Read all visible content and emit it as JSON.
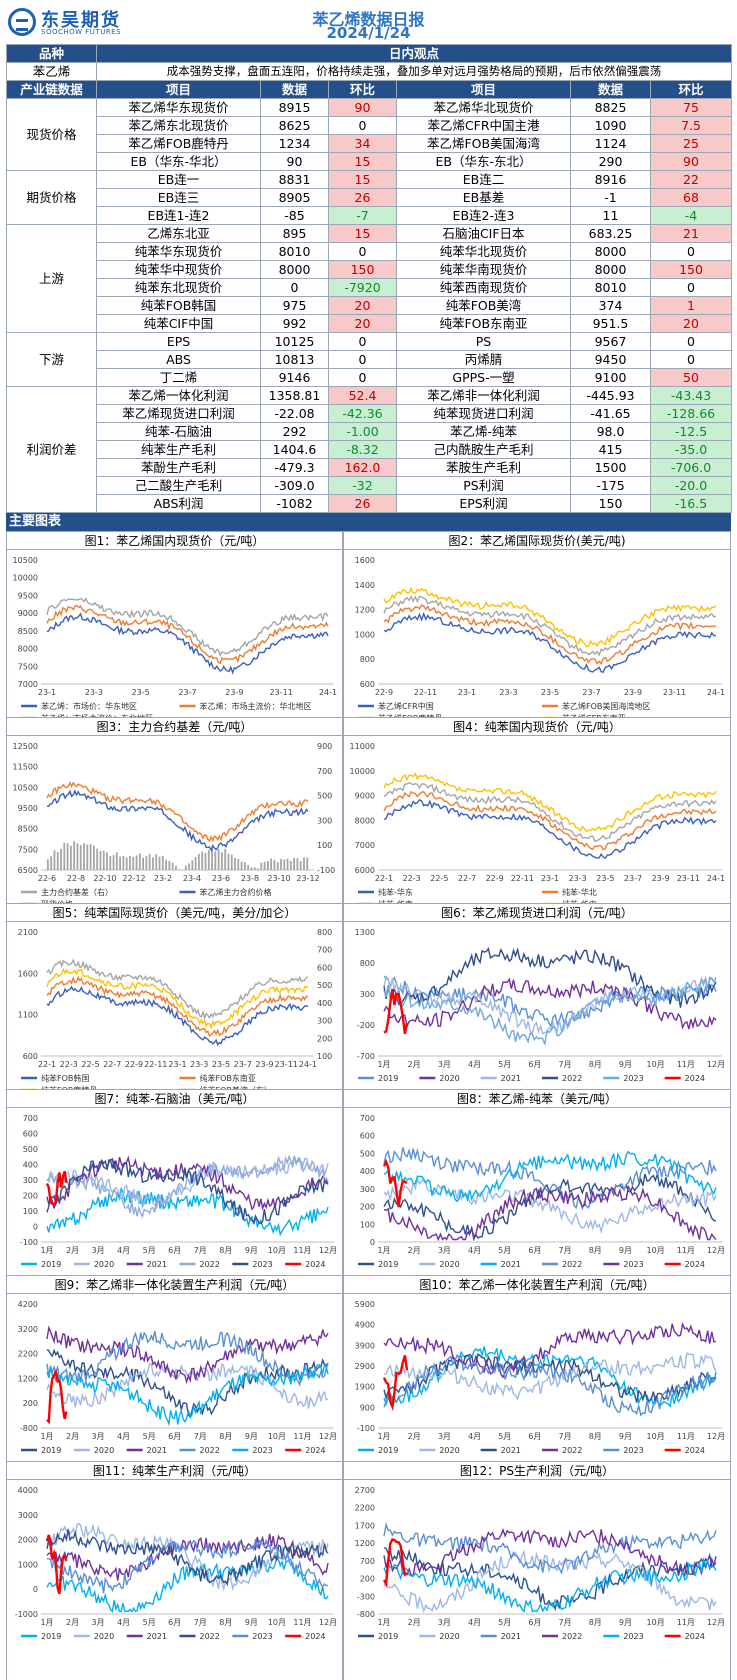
{
  "header": {
    "logo_cn": "东吴期货",
    "logo_en": "SOOCHOW FUTURES",
    "title": "苯乙烯数据日报",
    "date": "2024/1/24"
  },
  "view_header": {
    "variety_label": "品种",
    "view_label": "日内观点"
  },
  "view": {
    "variety": "苯乙烯",
    "text": "成本强势支撑，盘面五连阳，价格持续走强，叠加多单对远月强势格局的预期，后市依然偏强震荡"
  },
  "columns": {
    "chain": "产业链数据",
    "item": "项目",
    "data": "数据",
    "chg": "环比"
  },
  "sections": [
    {
      "name": "现货价格",
      "rows": [
        [
          "苯乙烯华东现货价",
          "8915",
          "90",
          "pos",
          "苯乙烯华北现货价",
          "8825",
          "75",
          "pos"
        ],
        [
          "苯乙烯东北现货价",
          "8625",
          "0",
          "",
          "苯乙烯CFR中国主港",
          "1090",
          "7.5",
          "pos"
        ],
        [
          "苯乙烯FOB鹿特丹",
          "1234",
          "34",
          "pos",
          "苯乙烯FOB美国海湾",
          "1124",
          "25",
          "pos"
        ],
        [
          "EB（华东-华北）",
          "90",
          "15",
          "pos",
          "EB（华东-东北）",
          "290",
          "90",
          "pos"
        ]
      ]
    },
    {
      "name": "期货价格",
      "rows": [
        [
          "EB连一",
          "8831",
          "15",
          "pos",
          "EB连二",
          "8916",
          "22",
          "pos"
        ],
        [
          "EB连三",
          "8905",
          "26",
          "pos",
          "EB基差",
          "-1",
          "68",
          "pos"
        ],
        [
          "EB连1-连2",
          "-85",
          "-7",
          "neg",
          "EB连2-连3",
          "11",
          "-4",
          "neg"
        ]
      ]
    },
    {
      "name": "上游",
      "rows": [
        [
          "乙烯东北亚",
          "895",
          "15",
          "pos",
          "石脑油CIF日本",
          "683.25",
          "21",
          "pos"
        ],
        [
          "纯苯华东现货价",
          "8010",
          "0",
          "",
          "纯苯华北现货价",
          "8000",
          "0",
          ""
        ],
        [
          "纯苯华中现货价",
          "8000",
          "150",
          "pos",
          "纯苯华南现货价",
          "8000",
          "150",
          "pos"
        ],
        [
          "纯苯东北现货价",
          "0",
          "-7920",
          "neg",
          "纯苯西南现货价",
          "8010",
          "0",
          ""
        ],
        [
          "纯苯FOB韩国",
          "975",
          "20",
          "pos",
          "纯苯FOB美湾",
          "374",
          "1",
          "pos"
        ],
        [
          "纯苯CIF中国",
          "992",
          "20",
          "pos",
          "纯苯FOB东南亚",
          "951.5",
          "20",
          "pos"
        ]
      ]
    },
    {
      "name": "下游",
      "rows": [
        [
          "EPS",
          "10125",
          "0",
          "",
          "PS",
          "9567",
          "0",
          ""
        ],
        [
          "ABS",
          "10813",
          "0",
          "",
          "丙烯腈",
          "9450",
          "0",
          ""
        ],
        [
          "丁二烯",
          "9146",
          "0",
          "",
          "GPPS-一塑",
          "9100",
          "50",
          "pos"
        ]
      ]
    },
    {
      "name": "利润价差",
      "rows": [
        [
          "苯乙烯一体化利润",
          "1358.81",
          "52.4",
          "pos",
          "苯乙烯非一体化利润",
          "-445.93",
          "-43.43",
          "neg"
        ],
        [
          "苯乙烯现货进口利润",
          "-22.08",
          "-42.36",
          "neg",
          "纯苯现货进口利润",
          "-41.65",
          "-128.66",
          "neg"
        ],
        [
          "纯苯-石脑油",
          "292",
          "-1.00",
          "neg",
          "苯乙烯-纯苯",
          "98.0",
          "-12.5",
          "neg"
        ],
        [
          "纯苯生产毛利",
          "1404.6",
          "-8.32",
          "neg",
          "己内酰胺生产毛利",
          "415",
          "-35.0",
          "neg"
        ],
        [
          "苯酚生产毛利",
          "-479.3",
          "162.0",
          "pos",
          "苯胺生产毛利",
          "1500",
          "-706.0",
          "neg"
        ],
        [
          "己二酸生产毛利",
          "-309.0",
          "-32",
          "neg",
          "PS利润",
          "-175",
          "-20.0",
          "neg"
        ],
        [
          "ABS利润",
          "-1082",
          "26",
          "pos",
          "EPS利润",
          "150",
          "-16.5",
          "neg"
        ]
      ]
    }
  ],
  "charts_header": "主要图表",
  "chart_data": [
    {
      "type": "line",
      "title": "图1：苯乙烯国内现货价（元/吨）",
      "ylim": [
        7000,
        10500
      ],
      "yticks": [
        "10500",
        "10000",
        "9500",
        "9000",
        "8500",
        "8000",
        "7500",
        "7000"
      ],
      "xticks": [
        "23-1",
        "23-3",
        "23-5",
        "23-7",
        "23-9",
        "23-11",
        "24-1"
      ],
      "series": [
        {
          "name": "苯乙烯：市场价：华东地区",
          "color": "#3b5fc0"
        },
        {
          "name": "苯乙烯：市场主流价：华北地区",
          "color": "#ed7d31"
        },
        {
          "name": "苯乙烯：市场主流价：东北地区",
          "color": "#a5a5a5"
        }
      ]
    },
    {
      "type": "line",
      "title": "图2：苯乙烯国际现货价(美元/吨)",
      "ylim": [
        600,
        1600
      ],
      "yticks": [
        "1600",
        "1400",
        "1200",
        "1000",
        "800",
        "600"
      ],
      "xticks": [
        "22-9",
        "22-11",
        "23-1",
        "23-3",
        "23-5",
        "23-7",
        "23-9",
        "23-11",
        "24-1"
      ],
      "series": [
        {
          "name": "苯乙烯CFR中国",
          "color": "#3b5fc0"
        },
        {
          "name": "苯乙烯FOB美国海湾地区",
          "color": "#ed7d31"
        },
        {
          "name": "苯乙烯FOB鹿特丹",
          "color": "#a5a5a5"
        },
        {
          "name": "苯乙烯CFR东南亚",
          "color": "#ffc000"
        }
      ]
    },
    {
      "type": "line",
      "title": "图3：主力合约基差（元/吨）",
      "ylim": [
        6500,
        12500
      ],
      "yticks": [
        "12500",
        "11500",
        "10500",
        "9500",
        "8500",
        "7500",
        "6500"
      ],
      "y2ticks": [
        "900",
        "700",
        "500",
        "300",
        "100",
        "-100"
      ],
      "xticks": [
        "22-6",
        "22-8",
        "22-10",
        "22-12",
        "23-2",
        "23-4",
        "23-6",
        "23-8",
        "23-10",
        "23-12"
      ],
      "series": [
        {
          "name": "主力合约基差（右）",
          "color": "#a5a5a5"
        },
        {
          "name": "苯乙烯主力合约价格",
          "color": "#3b5fc0"
        },
        {
          "name": "现货价格",
          "color": "#ed7d31"
        }
      ]
    },
    {
      "type": "line",
      "title": "图4：纯苯国内现货价（元/吨）",
      "ylim": [
        6000,
        11000
      ],
      "yticks": [
        "11000",
        "10000",
        "9000",
        "8000",
        "7000",
        "6000"
      ],
      "xticks": [
        "22-1",
        "22-3",
        "22-5",
        "22-7",
        "22-9",
        "22-11",
        "23-1",
        "23-3",
        "23-5",
        "23-7",
        "23-9",
        "23-11",
        "24-1"
      ],
      "series": [
        {
          "name": "纯苯-华东",
          "color": "#3b5fc0"
        },
        {
          "name": "纯苯-华北",
          "color": "#ed7d31"
        },
        {
          "name": "纯苯-华南",
          "color": "#a5a5a5"
        },
        {
          "name": "纯苯-华中",
          "color": "#ffc000"
        }
      ]
    },
    {
      "type": "line",
      "title": "图5：纯苯国际现货价（美元/吨，美分/加仑）",
      "ylim": [
        600,
        2100
      ],
      "yticks": [
        "2100",
        "1600",
        "1100",
        "600"
      ],
      "y2ticks": [
        "800",
        "700",
        "600",
        "500",
        "400",
        "300",
        "200",
        "100"
      ],
      "xticks": [
        "22-1",
        "22-3",
        "22-5",
        "22-7",
        "22-9",
        "22-11",
        "23-1",
        "23-3",
        "23-5",
        "23-7",
        "23-9",
        "23-11",
        "24-1"
      ],
      "series": [
        {
          "name": "纯苯FOB韩国",
          "color": "#3b5fc0"
        },
        {
          "name": "纯苯FOB东南亚",
          "color": "#ed7d31"
        },
        {
          "name": "纯苯FOB鹿特丹",
          "color": "#ffc000"
        },
        {
          "name": "纯苯FOB美湾（右）",
          "color": "#a5a5a5"
        }
      ]
    },
    {
      "type": "line",
      "title": "图6：苯乙烯现货进口利润（元/吨）",
      "ylim": [
        -700,
        1300
      ],
      "yticks": [
        "1300",
        "800",
        "300",
        "-200",
        "-700"
      ],
      "xticks": [
        "1月",
        "2月",
        "3月",
        "4月",
        "5月",
        "6月",
        "7月",
        "8月",
        "9月",
        "10月",
        "11月",
        "12月"
      ],
      "series": [
        {
          "name": "2019",
          "color": "#5a8fd6"
        },
        {
          "name": "2020",
          "color": "#7030a0"
        },
        {
          "name": "2021",
          "color": "#9db8e6"
        },
        {
          "name": "2022",
          "color": "#2f4f8f"
        },
        {
          "name": "2023",
          "color": "#6fa8dc"
        },
        {
          "name": "2024",
          "color": "#ff0000"
        }
      ]
    },
    {
      "type": "line",
      "title": "图7：纯苯-石脑油（美元/吨）",
      "ylim": [
        -100,
        700
      ],
      "yticks": [
        "700",
        "600",
        "500",
        "400",
        "300",
        "200",
        "100",
        "0",
        "-100"
      ],
      "xticks": [
        "1月",
        "2月",
        "3月",
        "4月",
        "5月",
        "6月",
        "7月",
        "8月",
        "9月",
        "10月",
        "11月",
        "12月"
      ],
      "series": [
        {
          "name": "2019",
          "color": "#00b0f0"
        },
        {
          "name": "2020",
          "color": "#9db8e6"
        },
        {
          "name": "2021",
          "color": "#7030a0"
        },
        {
          "name": "2022",
          "color": "#8faadc"
        },
        {
          "name": "2023",
          "color": "#2f4f8f"
        },
        {
          "name": "2024",
          "color": "#ff0000"
        }
      ]
    },
    {
      "type": "line",
      "title": "图8：苯乙烯-纯苯（美元/吨）",
      "ylim": [
        0,
        700
      ],
      "yticks": [
        "700",
        "600",
        "500",
        "400",
        "300",
        "200",
        "100",
        "0"
      ],
      "xticks": [
        "1月",
        "2月",
        "3月",
        "4月",
        "5月",
        "6月",
        "7月",
        "8月",
        "9月",
        "10月",
        "11月",
        "12月"
      ],
      "series": [
        {
          "name": "2019",
          "color": "#2f4f8f"
        },
        {
          "name": "2020",
          "color": "#9db8e6"
        },
        {
          "name": "2021",
          "color": "#00b0f0"
        },
        {
          "name": "2022",
          "color": "#5a8fd6"
        },
        {
          "name": "2023",
          "color": "#7030a0"
        },
        {
          "name": "2024",
          "color": "#ff0000"
        }
      ]
    },
    {
      "type": "line",
      "title": "图9：苯乙烯非一体化装置生产利润（元/吨）",
      "ylim": [
        -800,
        4200
      ],
      "yticks": [
        "4200",
        "3200",
        "2200",
        "1200",
        "200",
        "-800"
      ],
      "xticks": [
        "1月",
        "2月",
        "3月",
        "4月",
        "5月",
        "6月",
        "7月",
        "8月",
        "9月",
        "10月",
        "11月",
        "12月"
      ],
      "series": [
        {
          "name": "2019",
          "color": "#2f4f8f"
        },
        {
          "name": "2020",
          "color": "#9db8e6"
        },
        {
          "name": "2021",
          "color": "#7030a0"
        },
        {
          "name": "2022",
          "color": "#5a8fd6"
        },
        {
          "name": "2023",
          "color": "#00b0f0"
        },
        {
          "name": "2024",
          "color": "#ff0000"
        }
      ]
    },
    {
      "type": "line",
      "title": "图10：苯乙烯一体化装置生产利润（元/吨）",
      "ylim": [
        -100,
        5900
      ],
      "yticks": [
        "5900",
        "4900",
        "3900",
        "2900",
        "1900",
        "900",
        "-100"
      ],
      "xticks": [
        "1月",
        "2月",
        "3月",
        "4月",
        "5月",
        "6月",
        "7月",
        "8月",
        "9月",
        "10月",
        "11月",
        "12月"
      ],
      "series": [
        {
          "name": "2019",
          "color": "#00b0f0"
        },
        {
          "name": "2020",
          "color": "#9db8e6"
        },
        {
          "name": "2021",
          "color": "#2f4f8f"
        },
        {
          "name": "2022",
          "color": "#7030a0"
        },
        {
          "name": "2023",
          "color": "#5a8fd6"
        },
        {
          "name": "2024",
          "color": "#ff0000"
        }
      ]
    },
    {
      "type": "line",
      "title": "图11：纯苯生产利润（元/吨）",
      "ylim": [
        -1000,
        4000
      ],
      "yticks": [
        "4000",
        "3000",
        "2000",
        "1000",
        "0",
        "-1000"
      ],
      "xticks": [
        "1月",
        "2月",
        "3月",
        "4月",
        "5月",
        "6月",
        "7月",
        "8月",
        "9月",
        "10月",
        "11月",
        "12月"
      ],
      "series": [
        {
          "name": "2019",
          "color": "#00b0f0"
        },
        {
          "name": "2020",
          "color": "#9db8e6"
        },
        {
          "name": "2021",
          "color": "#7030a0"
        },
        {
          "name": "2022",
          "color": "#2f4f8f"
        },
        {
          "name": "2023",
          "color": "#5a8fd6"
        },
        {
          "name": "2024",
          "color": "#ff0000"
        }
      ]
    },
    {
      "type": "line",
      "title": "图12：PS生产利润（元/吨）",
      "ylim": [
        -800,
        2700
      ],
      "yticks": [
        "2700",
        "2200",
        "1700",
        "1200",
        "700",
        "200",
        "-300",
        "-800"
      ],
      "xticks": [
        "1月",
        "2月",
        "3月",
        "4月",
        "5月",
        "6月",
        "7月",
        "8月",
        "9月",
        "10月",
        "11月",
        "12月"
      ],
      "series": [
        {
          "name": "2019",
          "color": "#2f4f8f"
        },
        {
          "name": "2020",
          "color": "#9db8e6"
        },
        {
          "name": "2021",
          "color": "#5a8fd6"
        },
        {
          "name": "2022",
          "color": "#7030a0"
        },
        {
          "name": "2023",
          "color": "#00b0f0"
        },
        {
          "name": "2024",
          "color": "#ff0000"
        }
      ]
    }
  ]
}
